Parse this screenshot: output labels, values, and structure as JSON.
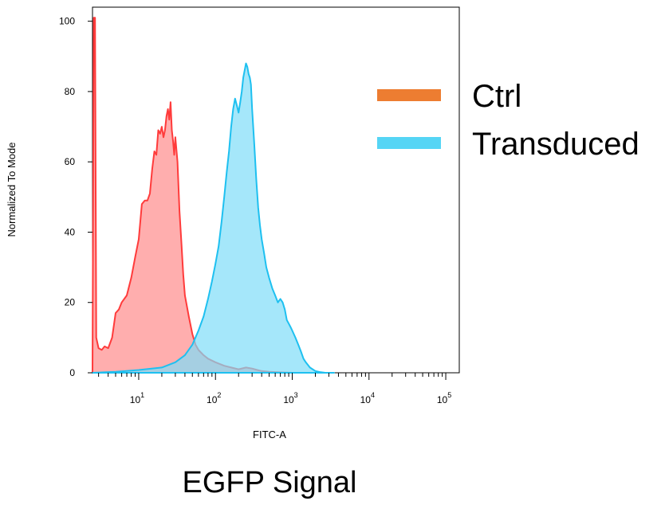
{
  "chart_data": {
    "type": "area",
    "xlabel": "FITC-A",
    "ylabel": "Normalized To Mode",
    "x_scale": "log",
    "xlim": [
      2.5,
      150000
    ],
    "ylim": [
      0,
      104
    ],
    "x_ticks": [
      {
        "value": 10,
        "base": "10",
        "exp": "1"
      },
      {
        "value": 100,
        "base": "10",
        "exp": "2"
      },
      {
        "value": 1000,
        "base": "10",
        "exp": "3"
      },
      {
        "value": 10000,
        "base": "10",
        "exp": "4"
      },
      {
        "value": 100000,
        "base": "10",
        "exp": "5"
      }
    ],
    "y_ticks": [
      "0",
      "20",
      "40",
      "60",
      "80",
      "100"
    ],
    "legend_position": "right",
    "series": [
      {
        "name": "Ctrl",
        "legend_color": "#ED7D31",
        "stroke_color": "#FF3B3B",
        "fill_color": "#FF8C8C",
        "x": [
          2.5,
          2.6,
          2.7,
          2.8,
          3.0,
          3.3,
          3.6,
          4.0,
          4.5,
          5.0,
          5.5,
          6.0,
          7.0,
          8.0,
          9.0,
          10,
          11,
          12,
          13,
          14,
          15,
          16,
          17,
          18,
          19,
          20,
          21,
          22,
          23,
          24,
          25,
          26,
          27,
          28,
          29,
          30,
          32,
          34,
          36,
          38,
          40,
          45,
          50,
          55,
          60,
          70,
          80,
          100,
          130,
          160,
          200,
          250,
          300,
          350,
          400,
          500,
          600,
          800,
          1000
        ],
        "y": [
          0,
          101,
          101,
          10,
          7,
          6.5,
          7.5,
          7,
          10,
          17,
          18,
          20,
          22,
          27,
          33,
          38,
          48,
          49,
          49,
          51,
          58,
          63,
          62,
          69,
          68,
          70,
          67,
          69,
          73,
          75,
          72,
          77,
          69,
          66,
          62,
          67,
          60,
          46,
          37,
          28,
          22,
          16,
          11,
          8,
          6.5,
          5,
          4,
          3,
          2,
          1.5,
          1,
          1.5,
          1.2,
          0.8,
          0.5,
          0.3,
          0.2,
          0.1,
          0
        ]
      },
      {
        "name": "Transduced",
        "legend_color": "#55D5F5",
        "stroke_color": "#1EC0F0",
        "fill_color": "#7FDDF8",
        "x": [
          2.5,
          5,
          10,
          20,
          30,
          40,
          50,
          60,
          70,
          80,
          90,
          100,
          110,
          120,
          130,
          140,
          150,
          160,
          170,
          180,
          190,
          200,
          210,
          220,
          230,
          240,
          250,
          260,
          270,
          280,
          290,
          300,
          320,
          340,
          360,
          380,
          400,
          430,
          460,
          500,
          550,
          600,
          650,
          700,
          750,
          800,
          850,
          900,
          950,
          1000,
          1100,
          1200,
          1300,
          1400,
          1500,
          1700,
          2000,
          2300,
          2700,
          3000,
          3500
        ],
        "y": [
          0,
          0.3,
          0.8,
          1.5,
          3,
          5,
          8,
          12,
          16,
          21,
          26,
          31,
          36,
          43,
          50,
          57,
          63,
          70,
          75,
          78,
          76,
          74,
          77,
          80,
          84,
          86,
          88,
          87,
          85,
          84,
          82,
          75,
          65,
          55,
          47,
          42,
          38,
          34,
          30,
          27,
          24,
          22,
          20,
          21,
          20,
          18,
          15,
          14,
          13,
          12,
          10,
          8,
          6,
          4,
          3,
          1.5,
          0.5,
          0.2,
          0,
          0,
          0
        ]
      }
    ]
  },
  "caption": "EGFP Signal"
}
